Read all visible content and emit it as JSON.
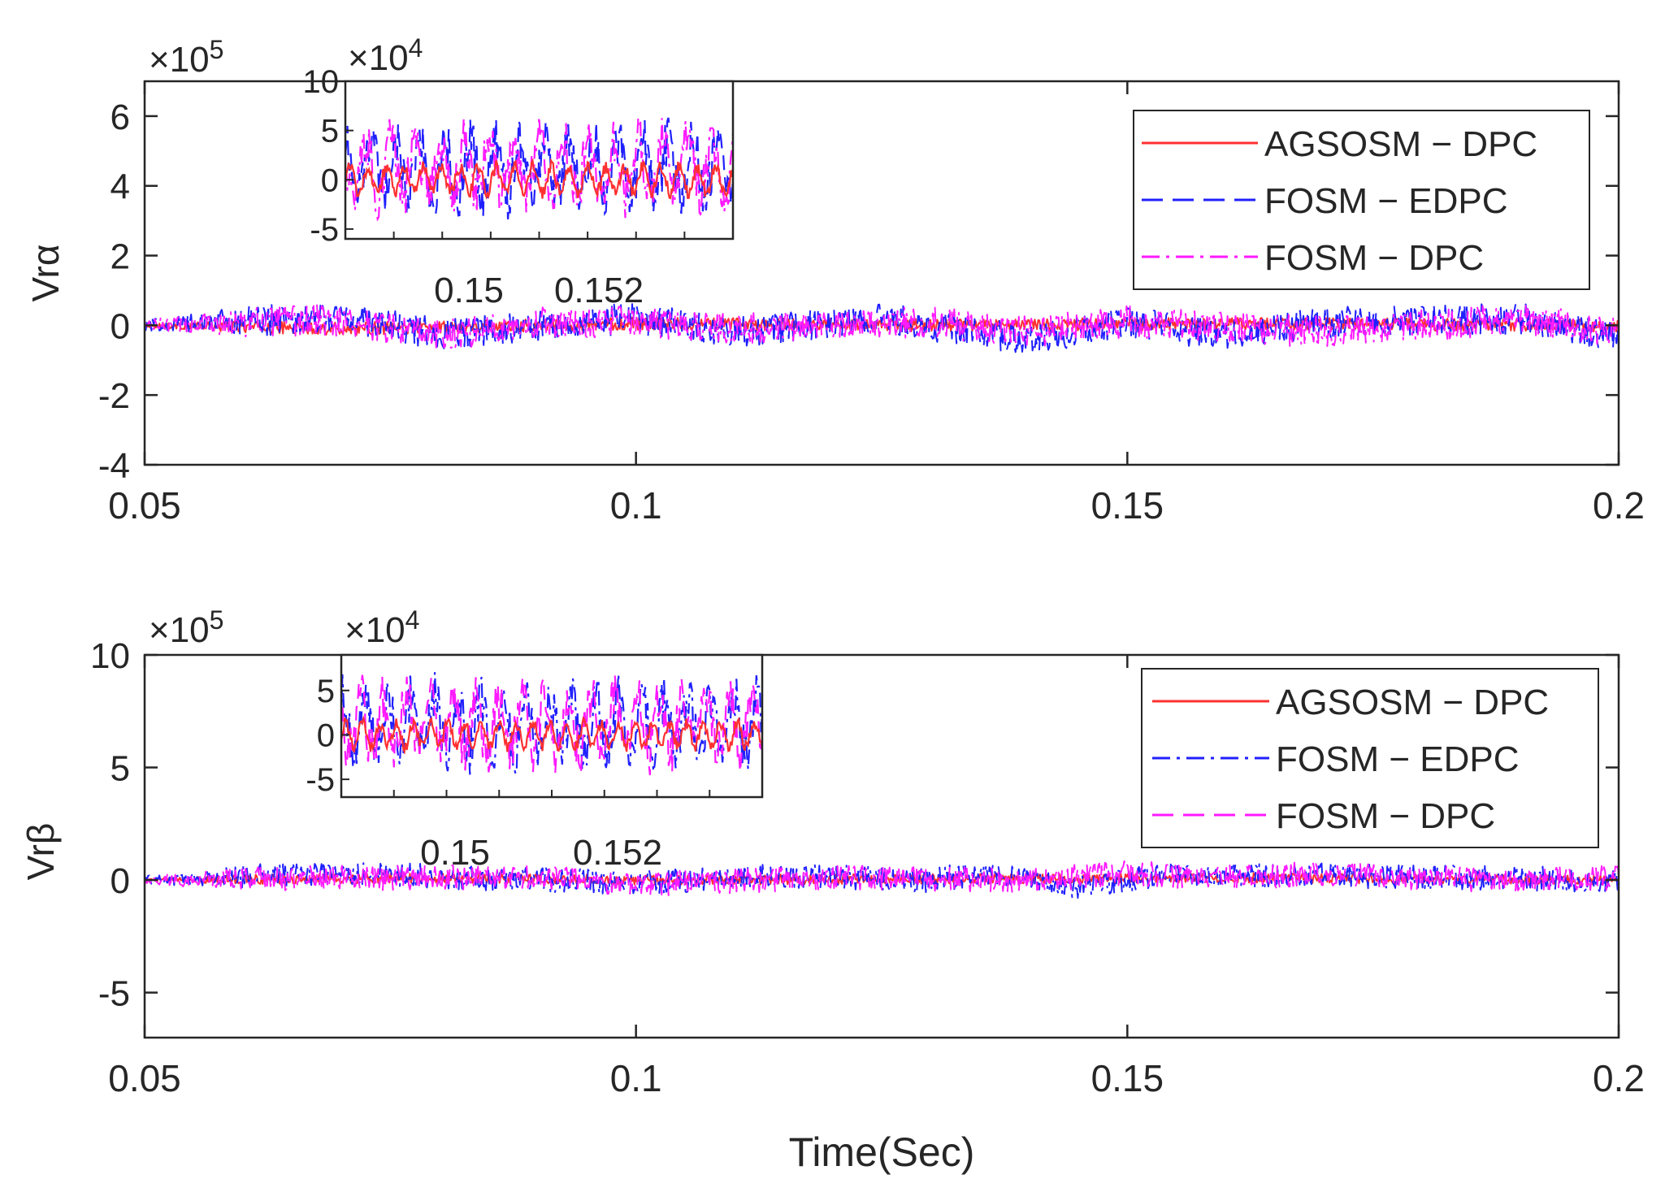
{
  "chart_data": [
    {
      "id": "alpha",
      "type": "line",
      "ylabel": "Vrα",
      "xlabel": "",
      "scale_label": "×10",
      "scale_exp": "5",
      "xlim": [
        0.05,
        0.2
      ],
      "ylim": [
        -4,
        7
      ],
      "xticks": [
        0.05,
        0.1,
        0.15,
        0.2
      ],
      "xtick_labels": [
        "0.05",
        "0.1",
        "0.15",
        "0.2"
      ],
      "yticks": [
        -4,
        -2,
        0,
        2,
        4,
        6
      ],
      "ytick_labels": [
        "-4",
        "-2",
        "0",
        "2",
        "4",
        "6"
      ],
      "legend_position": "top-right",
      "series": [
        {
          "name": "AGSOSM − DPC",
          "color": "#ff3030",
          "style": "solid",
          "noise": 0.18,
          "envelope": [
            [
              0.05,
              0.0
            ],
            [
              0.07,
              -0.1
            ],
            [
              0.1,
              0.05
            ],
            [
              0.13,
              0.0
            ],
            [
              0.16,
              0.05
            ],
            [
              0.2,
              0.0
            ]
          ]
        },
        {
          "name": "FOSM − EDPC",
          "color": "#2020ff",
          "style": "dashed",
          "noise": 0.45,
          "envelope": [
            [
              0.05,
              0.0
            ],
            [
              0.07,
              0.25
            ],
            [
              0.08,
              -0.25
            ],
            [
              0.1,
              0.2
            ],
            [
              0.11,
              -0.2
            ],
            [
              0.125,
              0.2
            ],
            [
              0.14,
              -0.4
            ],
            [
              0.15,
              0.1
            ],
            [
              0.16,
              -0.3
            ],
            [
              0.17,
              0.1
            ],
            [
              0.19,
              0.2
            ],
            [
              0.2,
              -0.3
            ]
          ]
        },
        {
          "name": "FOSM − DPC",
          "color": "#ff1aff",
          "style": "dashdot",
          "noise": 0.45,
          "envelope": [
            [
              0.05,
              0.0
            ],
            [
              0.07,
              0.15
            ],
            [
              0.08,
              -0.3
            ],
            [
              0.09,
              0.1
            ],
            [
              0.1,
              0.1
            ],
            [
              0.11,
              -0.1
            ],
            [
              0.13,
              0.1
            ],
            [
              0.14,
              -0.2
            ],
            [
              0.15,
              0.1
            ],
            [
              0.17,
              -0.2
            ],
            [
              0.19,
              0.2
            ],
            [
              0.2,
              -0.2
            ]
          ]
        }
      ],
      "inset": {
        "xlim": [
          0.1494,
          0.153
        ],
        "ylim": [
          -6,
          10
        ],
        "scale_label": "×10",
        "scale_exp": "4",
        "yticks": [
          -5,
          0,
          5,
          10
        ],
        "ytick_labels": [
          "-5",
          "0",
          "5",
          "10"
        ],
        "xtick_labels": [
          "0.15",
          "0.152"
        ],
        "series_amplitude": [
          2.2,
          4.0,
          4.0
        ]
      }
    },
    {
      "id": "beta",
      "type": "line",
      "ylabel": "Vrβ",
      "xlabel": "Time(Sec)",
      "scale_label": "×10",
      "scale_exp": "5",
      "xlim": [
        0.05,
        0.2
      ],
      "ylim": [
        -7,
        10
      ],
      "xticks": [
        0.05,
        0.1,
        0.15,
        0.2
      ],
      "xtick_labels": [
        "0.05",
        "0.1",
        "0.15",
        "0.2"
      ],
      "yticks": [
        -5,
        0,
        5,
        10
      ],
      "ytick_labels": [
        "-5",
        "0",
        "5",
        "10"
      ],
      "legend_position": "top-right",
      "series": [
        {
          "name": "AGSOSM − DPC",
          "color": "#ff3030",
          "style": "solid",
          "noise": 0.22,
          "envelope": [
            [
              0.05,
              0.0
            ],
            [
              0.08,
              0.1
            ],
            [
              0.1,
              0.0
            ],
            [
              0.13,
              0.05
            ],
            [
              0.16,
              0.1
            ],
            [
              0.2,
              0.0
            ]
          ]
        },
        {
          "name": "FOSM − EDPC",
          "color": "#2020ff",
          "style": "dashdot",
          "noise": 0.55,
          "envelope": [
            [
              0.05,
              0.0
            ],
            [
              0.07,
              0.3
            ],
            [
              0.09,
              0.0
            ],
            [
              0.1,
              -0.1
            ],
            [
              0.115,
              0.2
            ],
            [
              0.13,
              0.0
            ],
            [
              0.135,
              0.3
            ],
            [
              0.145,
              -0.3
            ],
            [
              0.155,
              0.3
            ],
            [
              0.17,
              0.2
            ],
            [
              0.185,
              0.1
            ],
            [
              0.2,
              0.0
            ]
          ]
        },
        {
          "name": "FOSM − DPC",
          "color": "#ff1aff",
          "style": "dashed",
          "noise": 0.55,
          "envelope": [
            [
              0.05,
              0.0
            ],
            [
              0.07,
              0.1
            ],
            [
              0.09,
              0.1
            ],
            [
              0.1,
              -0.2
            ],
            [
              0.12,
              0.1
            ],
            [
              0.14,
              0.0
            ],
            [
              0.15,
              0.3
            ],
            [
              0.16,
              0.1
            ],
            [
              0.17,
              0.3
            ],
            [
              0.185,
              0.0
            ],
            [
              0.2,
              0.1
            ]
          ]
        }
      ],
      "inset": {
        "xlim": [
          0.1494,
          0.1536
        ],
        "ylim": [
          -7,
          9
        ],
        "scale_label": "×10",
        "scale_exp": "4",
        "yticks": [
          -5,
          0,
          5
        ],
        "ytick_labels": [
          "-5",
          "0",
          "5"
        ],
        "xtick_labels": [
          "0.15",
          "0.152"
        ],
        "series_amplitude": [
          2.2,
          4.5,
          4.5
        ]
      }
    }
  ]
}
